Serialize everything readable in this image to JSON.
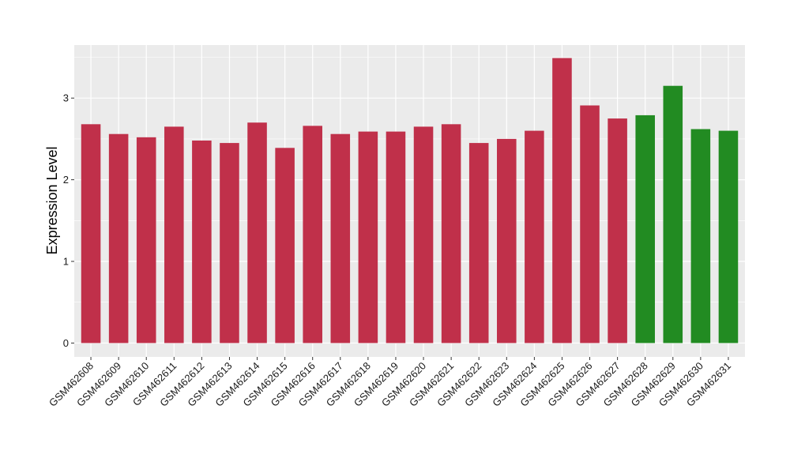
{
  "chart_data": {
    "type": "bar",
    "title": "",
    "xlabel": "",
    "ylabel": "Expression Level",
    "ylim": [
      -0.17,
      3.65
    ],
    "yticks": [
      0,
      1,
      2,
      3
    ],
    "grid": true,
    "legend": "none",
    "colors": {
      "group_a": "#c0304a",
      "group_b": "#228b22",
      "panel": "#ebebeb",
      "grid": "#ffffff"
    },
    "categories": [
      "GSM462608",
      "GSM462609",
      "GSM462610",
      "GSM462611",
      "GSM462612",
      "GSM462613",
      "GSM462614",
      "GSM462615",
      "GSM462616",
      "GSM462617",
      "GSM462618",
      "GSM462619",
      "GSM462620",
      "GSM462621",
      "GSM462622",
      "GSM462623",
      "GSM462624",
      "GSM462625",
      "GSM462626",
      "GSM462627",
      "GSM462628",
      "GSM462629",
      "GSM462630",
      "GSM462631"
    ],
    "values": [
      2.68,
      2.56,
      2.52,
      2.65,
      2.48,
      2.45,
      2.7,
      2.39,
      2.66,
      2.56,
      2.59,
      2.59,
      2.65,
      2.68,
      2.45,
      2.5,
      2.6,
      3.49,
      2.91,
      2.75,
      2.79,
      3.15,
      2.62,
      2.6
    ],
    "groups": [
      "a",
      "a",
      "a",
      "a",
      "a",
      "a",
      "a",
      "a",
      "a",
      "a",
      "a",
      "a",
      "a",
      "a",
      "a",
      "a",
      "a",
      "a",
      "a",
      "a",
      "b",
      "b",
      "b",
      "b"
    ]
  }
}
